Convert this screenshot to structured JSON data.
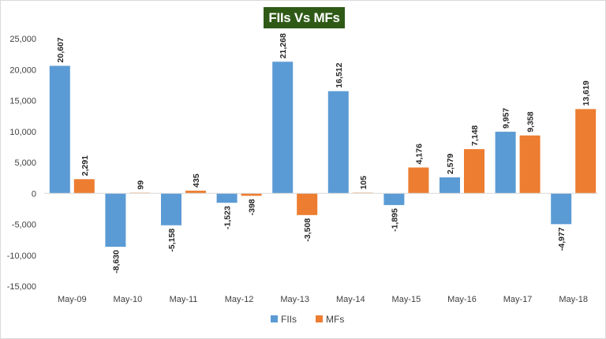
{
  "chart_data": {
    "type": "bar",
    "title": "FIIs Vs MFs",
    "xlabel": "",
    "ylabel": "",
    "ylim": [
      -15000,
      25000
    ],
    "y_ticks": [
      {
        "value": 25000,
        "label": "25,000"
      },
      {
        "value": 20000,
        "label": "20,000"
      },
      {
        "value": 15000,
        "label": "15,000"
      },
      {
        "value": 10000,
        "label": "10,000"
      },
      {
        "value": 5000,
        "label": "5,000"
      },
      {
        "value": 0,
        "label": "0"
      },
      {
        "value": -5000,
        "label": "-5,000"
      },
      {
        "value": -10000,
        "label": "-10,000"
      },
      {
        "value": -15000,
        "label": "-15,000"
      }
    ],
    "grid": false,
    "legend_position": "bottom",
    "categories": [
      "May-09",
      "May-10",
      "May-11",
      "May-12",
      "May-13",
      "May-14",
      "May-15",
      "May-16",
      "May-17",
      "May-18"
    ],
    "series": [
      {
        "name": "FIIs",
        "color": "#5b9bd5",
        "values": [
          20607,
          -8630,
          -5158,
          -1523,
          21268,
          16512,
          -1895,
          2579,
          9957,
          -4977
        ],
        "labels": [
          "20,607",
          "-8,630",
          "-5,158",
          "-1,523",
          "21,268",
          "16,512",
          "-1,895",
          "2,579",
          "9,957",
          "-4,977"
        ]
      },
      {
        "name": "MFs",
        "color": "#ed7d31",
        "values": [
          2291,
          99,
          435,
          -398,
          -3508,
          105,
          4176,
          7148,
          9358,
          13619
        ],
        "labels": [
          "2,291",
          "99",
          "435",
          "-398",
          "-3,508",
          "105",
          "4,176",
          "7,148",
          "9,358",
          "13,619"
        ]
      }
    ]
  }
}
